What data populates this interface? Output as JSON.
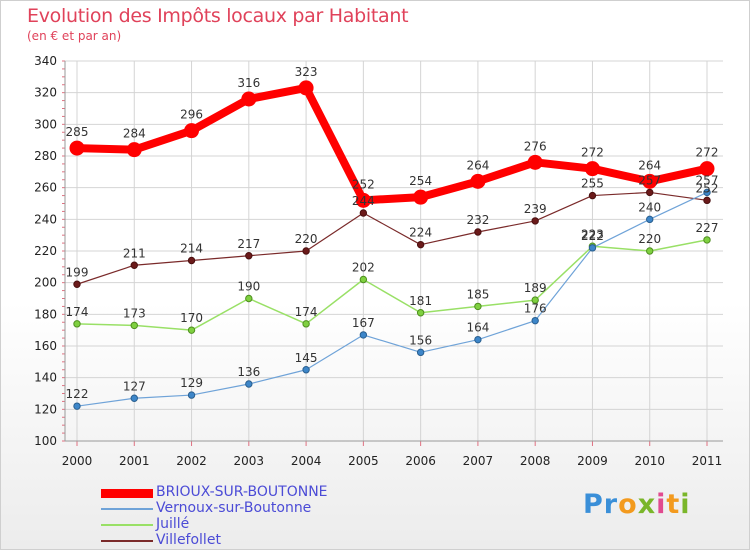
{
  "title": "Evolution des Impôts locaux par Habitant",
  "subtitle": "(en € et par an)",
  "logo": "Proxiti",
  "chart_data": {
    "type": "line",
    "title": "Evolution des Impôts locaux par Habitant",
    "subtitle": "(en € et par an)",
    "xlabel": "",
    "ylabel": "",
    "x": [
      "2000",
      "2001",
      "2002",
      "2003",
      "2004",
      "2005",
      "2006",
      "2007",
      "2008",
      "2009",
      "2010",
      "2011"
    ],
    "ylim": [
      100,
      340
    ],
    "yticks": [
      100,
      120,
      140,
      160,
      180,
      200,
      220,
      240,
      260,
      280,
      300,
      320,
      340
    ],
    "grid": true,
    "legend_position": "bottom-left",
    "series": [
      {
        "name": "BRIOUX-SUR-BOUTONNE",
        "color": "#ff0000",
        "values": [
          285,
          284,
          296,
          316,
          323,
          252,
          254,
          264,
          276,
          272,
          264,
          272
        ],
        "labels": [
          "285",
          "284",
          "296",
          "316",
          "323",
          "252",
          "254",
          "264",
          "276",
          "272",
          "264",
          "272"
        ]
      },
      {
        "name": "Vernoux-sur-Boutonne",
        "color": "#6fa3d8",
        "values": [
          122,
          127,
          129,
          136,
          145,
          167,
          156,
          164,
          176,
          222,
          240,
          257
        ],
        "labels": [
          "122",
          "127",
          "129",
          "136",
          "145",
          "167",
          "156",
          "164",
          "176",
          "222",
          "240",
          "257"
        ]
      },
      {
        "name": "Juillé",
        "color": "#99e066",
        "values": [
          174,
          173,
          170,
          190,
          174,
          202,
          181,
          185,
          189,
          223,
          220,
          227
        ],
        "labels": [
          "174",
          "173",
          "170",
          "190",
          "174",
          "202",
          "181",
          "185",
          "189",
          "223",
          "220",
          "227"
        ]
      },
      {
        "name": "Villefollet",
        "color": "#7a2a2a",
        "values": [
          199,
          211,
          214,
          217,
          220,
          244,
          224,
          232,
          239,
          255,
          257,
          252
        ],
        "labels": [
          "199",
          "211",
          "214",
          "217",
          "220",
          "244",
          "224",
          "232",
          "239",
          "255",
          "257",
          "252"
        ]
      }
    ]
  }
}
